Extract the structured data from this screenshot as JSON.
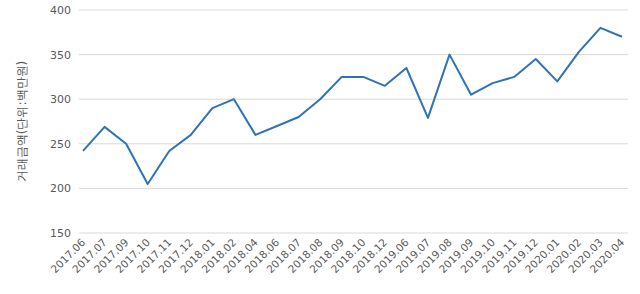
{
  "chart_data": {
    "type": "line",
    "y_label": "거래금액(단위:백만원)",
    "categories": [
      "2017.06",
      "2017.07",
      "2017.09",
      "2017.10",
      "2017.11",
      "2017.12",
      "2018.01",
      "2018.02",
      "2018.04",
      "2018.06",
      "2018.07",
      "2018.08",
      "2018.09",
      "2018.10",
      "2018.12",
      "2019.06",
      "2019.07",
      "2019.08",
      "2019.09",
      "2019.10",
      "2019.11",
      "2019.12",
      "2020.01",
      "2020.02",
      "2020.03",
      "2020.04"
    ],
    "values": [
      242,
      269,
      250,
      205,
      242,
      260,
      290,
      300,
      260,
      270,
      280,
      300,
      325,
      325,
      315,
      335,
      279,
      350,
      305,
      318,
      325,
      345,
      320,
      353,
      380,
      370
    ],
    "color": "#2e74b5",
    "ylim": [
      150,
      400
    ],
    "yticks": [
      150,
      200,
      250,
      300,
      350,
      400
    ],
    "grid": true
  }
}
